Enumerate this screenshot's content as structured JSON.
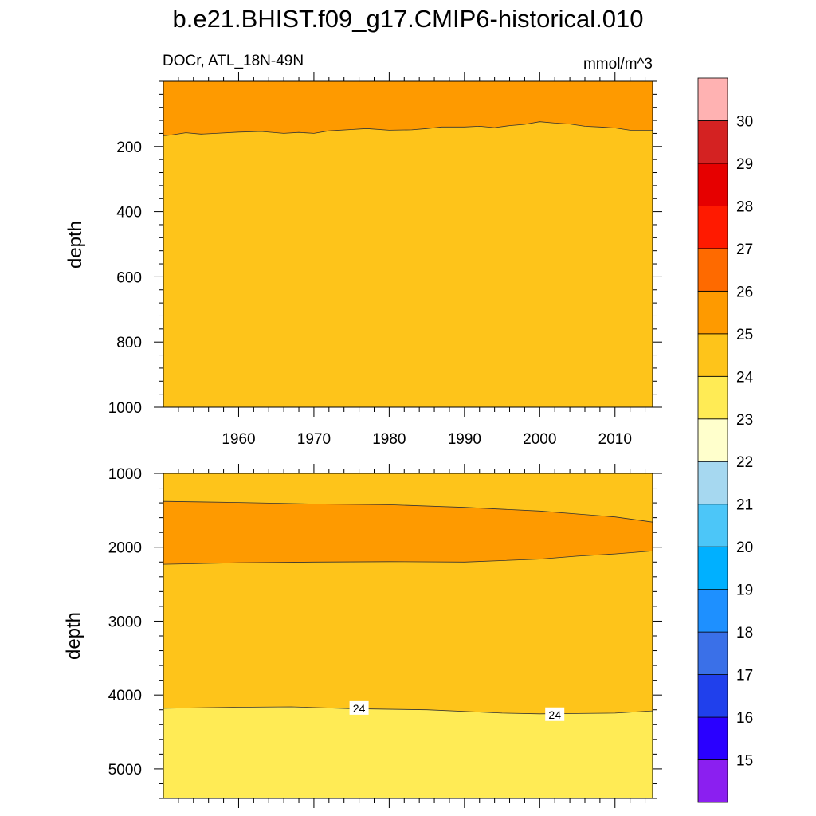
{
  "title": "b.e21.BHIST.f09_g17.CMIP6-historical.010",
  "colors": {
    "c23_24": "#ffeb55",
    "c24_25": "#fec41a",
    "c25_26": "#fe9a00",
    "contour": "#333333"
  },
  "chart_data": [
    {
      "type": "heatmap",
      "subtitle_left": "DOCr, ATL_18N-49N",
      "subtitle_right": "mmol/m^3",
      "ylabel": "depth",
      "xlabel": "",
      "xlim": [
        1950,
        2015
      ],
      "ylim": [
        1000,
        0
      ],
      "x_ticks": [
        "1960",
        "1970",
        "1980",
        "1990",
        "2000",
        "2010"
      ],
      "y_ticks": [
        "200",
        "400",
        "600",
        "800",
        "1000"
      ],
      "contour_25": {
        "x": [
          1950,
          1951,
          1953,
          1955,
          1957,
          1960,
          1963,
          1966,
          1968,
          1970,
          1972,
          1975,
          1977,
          1980,
          1983,
          1985,
          1987,
          1990,
          1992,
          1994,
          1996,
          1998,
          2000,
          2002,
          2004,
          2006,
          2008,
          2010,
          2012,
          2015
        ],
        "y": [
          167,
          165,
          158,
          162,
          160,
          156,
          154,
          160,
          157,
          160,
          152,
          148,
          145,
          150,
          149,
          145,
          140,
          140,
          138,
          142,
          136,
          132,
          124,
          128,
          131,
          138,
          140,
          143,
          150,
          150
        ]
      }
    },
    {
      "type": "heatmap",
      "ylabel": "depth",
      "xlabel": "",
      "xlim": [
        1950,
        2015
      ],
      "ylim": [
        5400,
        1000
      ],
      "y_ticks": [
        "1000",
        "2000",
        "3000",
        "4000",
        "5000"
      ],
      "contour_25_top": {
        "x": [
          1950,
          1960,
          1970,
          1980,
          1990,
          2000,
          2005,
          2010,
          2015
        ],
        "y": [
          1380,
          1395,
          1415,
          1425,
          1460,
          1510,
          1550,
          1590,
          1660
        ]
      },
      "contour_25_bottom": {
        "x": [
          1950,
          1960,
          1970,
          1980,
          1990,
          2000,
          2005,
          2010,
          2015
        ],
        "y": [
          2230,
          2210,
          2200,
          2195,
          2200,
          2160,
          2120,
          2090,
          2050
        ]
      },
      "contour_24": {
        "x": [
          1950,
          1960,
          1967,
          1975,
          1985,
          1995,
          2000,
          2005,
          2010,
          2015
        ],
        "y": [
          4180,
          4165,
          4160,
          4185,
          4200,
          4245,
          4255,
          4250,
          4245,
          4215
        ]
      },
      "contour_labels": [
        {
          "text": "24",
          "x": 1976,
          "y": 4180
        },
        {
          "text": "24",
          "x": 2002,
          "y": 4265
        }
      ]
    }
  ],
  "colorbar": {
    "colors": [
      "#8b1ff0",
      "#2a00ff",
      "#2040ec",
      "#3a70e8",
      "#1e90ff",
      "#00b0ff",
      "#4cc6f8",
      "#a6d8f0",
      "#ffffcc",
      "#ffeb55",
      "#fec41a",
      "#fe9a00",
      "#fe6a00",
      "#ff1a00",
      "#e60000",
      "#d42222",
      "#ffb2b2"
    ],
    "labels": [
      "15",
      "16",
      "17",
      "18",
      "19",
      "20",
      "21",
      "22",
      "23",
      "24",
      "25",
      "26",
      "27",
      "28",
      "29",
      "30"
    ]
  }
}
